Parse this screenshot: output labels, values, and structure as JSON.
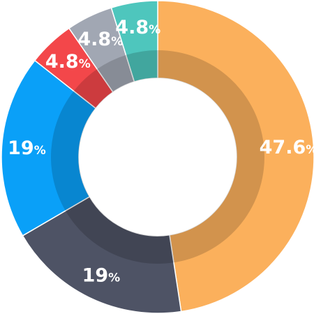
{
  "chart_data": {
    "type": "pie",
    "title": "",
    "donut": true,
    "legend": "none",
    "slices": [
      {
        "value": 47.6,
        "label_num": "47.6",
        "label_unit": "%",
        "color": "#fbb05c"
      },
      {
        "value": 19,
        "label_num": "19",
        "label_unit": "%",
        "color": "#4e5365"
      },
      {
        "value": 19,
        "label_num": "19",
        "label_unit": "%",
        "color": "#0aa0f8"
      },
      {
        "value": 4.8,
        "label_num": "4.8",
        "label_unit": "%",
        "color": "#f3474a"
      },
      {
        "value": 4.8,
        "label_num": "4.8",
        "label_unit": "%",
        "color": "#a1a7b3"
      },
      {
        "value": 4.8,
        "label_num": "4.8",
        "label_unit": "%",
        "color": "#4ec6bd"
      }
    ]
  }
}
